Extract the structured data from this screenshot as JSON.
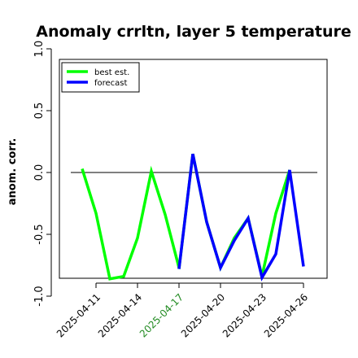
{
  "chart_data": {
    "type": "line",
    "title": "Anomaly crrltn, layer 5 temperature",
    "xlabel": "",
    "ylabel": "anom. corr.",
    "ylim": [
      -1.05,
      1.05
    ],
    "yticks": [
      -1.0,
      -0.5,
      0.0,
      0.5,
      1.0
    ],
    "ytick_labels": [
      "-1.0",
      "-0.5",
      "0.0",
      "0.5",
      "1.0"
    ],
    "reference_line_y": 0.0,
    "x": [
      "2025-04-10",
      "2025-04-11",
      "2025-04-12",
      "2025-04-13",
      "2025-04-14",
      "2025-04-15",
      "2025-04-16",
      "2025-04-17",
      "2025-04-18",
      "2025-04-19",
      "2025-04-20",
      "2025-04-21",
      "2025-04-22",
      "2025-04-23",
      "2025-04-24",
      "2025-04-25",
      "2025-04-26"
    ],
    "xticks": [
      "2025-04-11",
      "2025-04-14",
      "2025-04-17",
      "2025-04-20",
      "2025-04-23",
      "2025-04-26"
    ],
    "highlight_tick": "2025-04-17",
    "highlight_color": "#228b22",
    "legend_position": "top-left",
    "series": [
      {
        "name": "best est.",
        "color": "#00ff00",
        "values": [
          0.03,
          -0.33,
          -0.86,
          -0.84,
          -0.53,
          0.01,
          -0.34,
          -0.77,
          null,
          null,
          null,
          null,
          null,
          null,
          null,
          null,
          null
        ]
      },
      {
        "name": "forecast",
        "color": "#0000ff",
        "values": [
          null,
          null,
          null,
          null,
          null,
          null,
          null,
          -0.78,
          0.15,
          -0.4,
          -0.77,
          -0.55,
          -0.37,
          -0.85,
          -0.66,
          0.02,
          -0.76
        ],
        "values_continuation_best_est": [
          null,
          null,
          null,
          null,
          null,
          null,
          null,
          -0.78,
          0.15,
          -0.4,
          -0.77,
          -0.53,
          -0.37,
          -0.84,
          -0.33,
          0.02,
          null
        ]
      }
    ]
  }
}
